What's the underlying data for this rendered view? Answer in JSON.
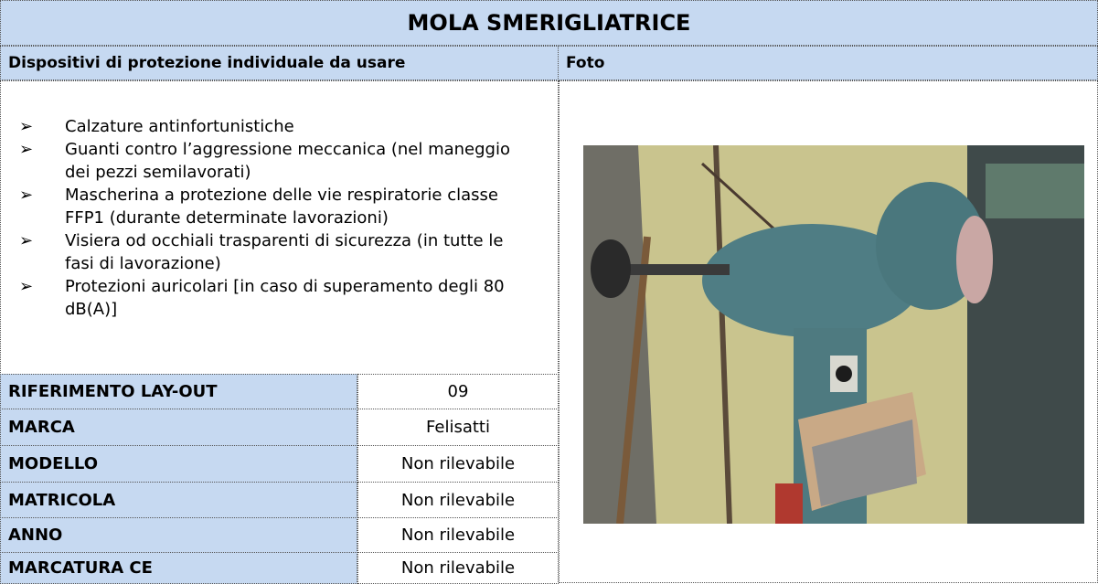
{
  "header": {
    "title": "MOLA SMERIGLIATRICE"
  },
  "columns": [
    "Dispositivi di protezione individuale da usare",
    "Foto"
  ],
  "ppe_list": [
    "Calzature antinfortunistiche",
    "Guanti contro l’aggressione meccanica (nel maneggio dei pezzi semilavorati)",
    "Mascherina a protezione delle vie respiratorie classe FFP1 (durante determinate lavorazioni)",
    "Visiera od occhiali trasparenti di sicurezza (in tutte le fasi di lavorazione)",
    "Protezioni auricolari [in caso di superamento degli 80 dB(A)]"
  ],
  "table": {
    "rows": [
      [
        "RIFERIMENTO LAY-OUT",
        "09"
      ],
      [
        "MARCA",
        "Felisatti"
      ],
      [
        "MODELLO",
        "Non rilevabile"
      ],
      [
        "MATRICOLA",
        "Non rilevabile"
      ],
      [
        "ANNO",
        "Non rilevabile"
      ],
      [
        "MARCATURA CE",
        "Non rilevabile"
      ]
    ]
  }
}
